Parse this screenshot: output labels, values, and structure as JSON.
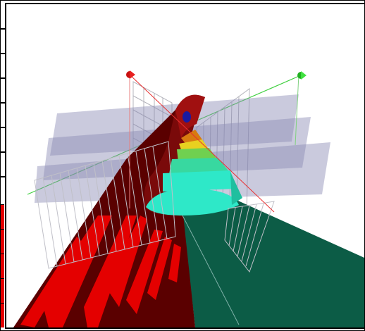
{
  "scene": {
    "colors": {
      "background": "#ffffff",
      "red_face": "#e40000",
      "dark_red": "#5a0000",
      "maroon": "#7a0a0a",
      "dark_green": "#0c5c46",
      "cyan": "#2ee8c8",
      "teal": "#1fbf9f",
      "green": "#70d050",
      "yellow": "#e8d020",
      "orange": "#d87a10",
      "blue_dot": "#1a1aa0",
      "plane": "#8a8ab4",
      "grid": "#b0b0b8",
      "red_axis": "#e83030",
      "green_axis": "#40d040"
    },
    "icons": {
      "red_handle": "red-cone-handle-icon",
      "green_handle": "green-cone-handle-icon"
    }
  }
}
